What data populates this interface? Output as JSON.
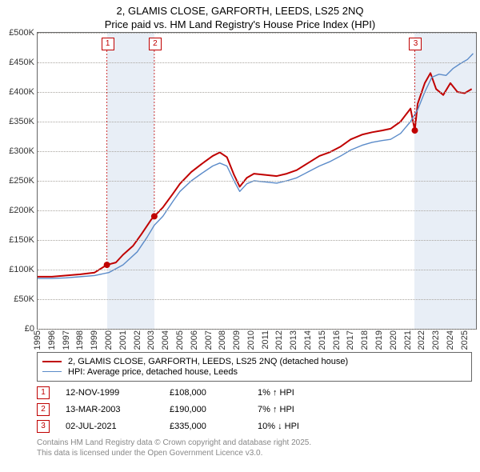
{
  "title_line1": "2, GLAMIS CLOSE, GARFORTH, LEEDS, LS25 2NQ",
  "title_line2": "Price paid vs. HM Land Registry's House Price Index (HPI)",
  "chart": {
    "type": "line",
    "xlim": [
      1995,
      2025.8
    ],
    "ylim": [
      0,
      500000
    ],
    "ytick_step": 50000,
    "yticks": [
      "£0",
      "£50K",
      "£100K",
      "£150K",
      "£200K",
      "£250K",
      "£300K",
      "£350K",
      "£400K",
      "£450K",
      "£500K"
    ],
    "xticks": [
      1995,
      1996,
      1997,
      1998,
      1999,
      2000,
      2001,
      2002,
      2003,
      2004,
      2005,
      2006,
      2007,
      2008,
      2009,
      2010,
      2011,
      2012,
      2013,
      2014,
      2015,
      2016,
      2017,
      2018,
      2019,
      2020,
      2021,
      2022,
      2023,
      2024,
      2025
    ],
    "background_color": "#ffffff",
    "grid_color": "#aaa6a0",
    "shade_color": "#e8eef6",
    "shaded_ranges": [
      [
        1999.87,
        2003.2
      ],
      [
        2021.5,
        2025.8
      ]
    ],
    "series": [
      {
        "name": "2, GLAMIS CLOSE, GARFORTH, LEEDS, LS25 2NQ (detached house)",
        "color": "#c00000",
        "width": 2,
        "points": [
          [
            1995,
            88000
          ],
          [
            1996,
            88000
          ],
          [
            1997,
            90000
          ],
          [
            1998,
            92000
          ],
          [
            1999,
            95000
          ],
          [
            1999.87,
            108000
          ],
          [
            2000.5,
            112000
          ],
          [
            2001,
            125000
          ],
          [
            2001.7,
            140000
          ],
          [
            2002.3,
            160000
          ],
          [
            2003,
            185000
          ],
          [
            2003.2,
            190000
          ],
          [
            2003.8,
            205000
          ],
          [
            2004.5,
            228000
          ],
          [
            2005,
            245000
          ],
          [
            2005.8,
            265000
          ],
          [
            2006.5,
            278000
          ],
          [
            2007.3,
            292000
          ],
          [
            2007.8,
            298000
          ],
          [
            2008.3,
            290000
          ],
          [
            2008.8,
            260000
          ],
          [
            2009.2,
            240000
          ],
          [
            2009.7,
            255000
          ],
          [
            2010.2,
            262000
          ],
          [
            2011,
            260000
          ],
          [
            2011.8,
            258000
          ],
          [
            2012.5,
            262000
          ],
          [
            2013.2,
            268000
          ],
          [
            2014,
            280000
          ],
          [
            2014.8,
            292000
          ],
          [
            2015.5,
            298000
          ],
          [
            2016.3,
            308000
          ],
          [
            2017,
            320000
          ],
          [
            2017.8,
            328000
          ],
          [
            2018.5,
            332000
          ],
          [
            2019.2,
            335000
          ],
          [
            2019.8,
            338000
          ],
          [
            2020.5,
            350000
          ],
          [
            2021.2,
            372000
          ],
          [
            2021.5,
            335000
          ],
          [
            2021.7,
            380000
          ],
          [
            2022.2,
            415000
          ],
          [
            2022.6,
            432000
          ],
          [
            2023,
            405000
          ],
          [
            2023.5,
            395000
          ],
          [
            2024,
            415000
          ],
          [
            2024.5,
            400000
          ],
          [
            2025,
            398000
          ],
          [
            2025.5,
            405000
          ]
        ]
      },
      {
        "name": "HPI: Average price, detached house, Leeds",
        "color": "#5b8bc9",
        "width": 1.4,
        "points": [
          [
            1995,
            85000
          ],
          [
            1996,
            85000
          ],
          [
            1997,
            86000
          ],
          [
            1998,
            88000
          ],
          [
            1999,
            90000
          ],
          [
            2000,
            95000
          ],
          [
            2001,
            108000
          ],
          [
            2002,
            130000
          ],
          [
            2002.7,
            155000
          ],
          [
            2003.2,
            175000
          ],
          [
            2003.8,
            190000
          ],
          [
            2004.5,
            215000
          ],
          [
            2005,
            232000
          ],
          [
            2005.8,
            250000
          ],
          [
            2006.5,
            262000
          ],
          [
            2007.3,
            275000
          ],
          [
            2007.8,
            280000
          ],
          [
            2008.3,
            275000
          ],
          [
            2008.8,
            250000
          ],
          [
            2009.2,
            232000
          ],
          [
            2009.7,
            245000
          ],
          [
            2010.2,
            250000
          ],
          [
            2011,
            248000
          ],
          [
            2011.8,
            246000
          ],
          [
            2012.5,
            250000
          ],
          [
            2013.2,
            255000
          ],
          [
            2014,
            265000
          ],
          [
            2014.8,
            275000
          ],
          [
            2015.5,
            282000
          ],
          [
            2016.3,
            292000
          ],
          [
            2017,
            302000
          ],
          [
            2017.8,
            310000
          ],
          [
            2018.5,
            315000
          ],
          [
            2019.2,
            318000
          ],
          [
            2019.8,
            320000
          ],
          [
            2020.5,
            330000
          ],
          [
            2021.2,
            350000
          ],
          [
            2021.7,
            370000
          ],
          [
            2022.2,
            400000
          ],
          [
            2022.7,
            425000
          ],
          [
            2023.2,
            430000
          ],
          [
            2023.7,
            428000
          ],
          [
            2024.2,
            440000
          ],
          [
            2024.7,
            448000
          ],
          [
            2025.2,
            455000
          ],
          [
            2025.6,
            465000
          ]
        ]
      }
    ],
    "sale_points": [
      {
        "x": 1999.87,
        "y": 108000
      },
      {
        "x": 2003.2,
        "y": 190000
      },
      {
        "x": 2021.5,
        "y": 335000
      }
    ],
    "marker_labels": [
      "1",
      "2",
      "3"
    ]
  },
  "legend": {
    "items": [
      {
        "color": "#c00000",
        "width": 2,
        "label": "2, GLAMIS CLOSE, GARFORTH, LEEDS, LS25 2NQ (detached house)"
      },
      {
        "color": "#5b8bc9",
        "width": 1.4,
        "label": "HPI: Average price, detached house, Leeds"
      }
    ]
  },
  "events": [
    {
      "marker": "1",
      "date": "12-NOV-1999",
      "price": "£108,000",
      "delta": "1% ↑ HPI"
    },
    {
      "marker": "2",
      "date": "13-MAR-2003",
      "price": "£190,000",
      "delta": "7% ↑ HPI"
    },
    {
      "marker": "3",
      "date": "02-JUL-2021",
      "price": "£335,000",
      "delta": "10% ↓ HPI"
    }
  ],
  "footer_line1": "Contains HM Land Registry data © Crown copyright and database right 2025.",
  "footer_line2": "This data is licensed under the Open Government Licence v3.0."
}
